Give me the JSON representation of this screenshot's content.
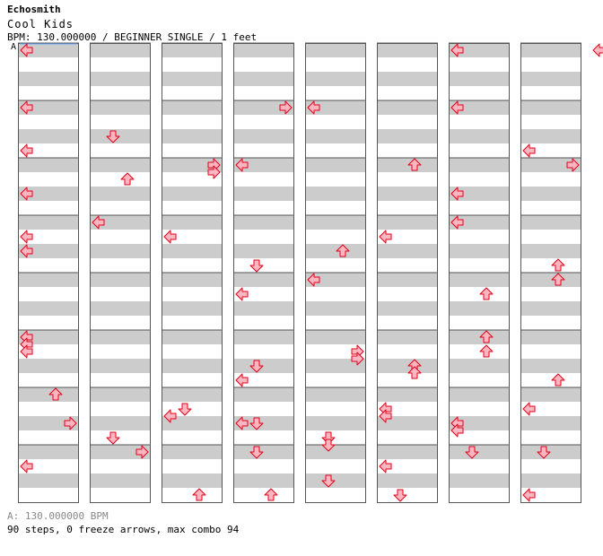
{
  "header": {
    "artist": "Echosmith",
    "title": "Cool Kids",
    "info": "BPM: 130.000000 / BEGINNER SINGLE / 1 feet"
  },
  "bpm_marker": "A",
  "footer": {
    "bpm_line": "A: 130.000000 BPM",
    "stats": "90 steps, 0 freeze arrows, max combo 94"
  },
  "colors": {
    "arrow_fill": "#ffb6c1",
    "arrow_stroke": "#e0001a",
    "stripe_gray": "#cccccc",
    "stripe_white": "#ffffff",
    "border": "#555555"
  },
  "legend": {
    "L": "left-arrow",
    "D": "down-arrow",
    "U": "up-arrow",
    "R": "right-arrow"
  },
  "chart_data": {
    "type": "step-chart",
    "columns_visible": 8,
    "measures_per_column": 8,
    "rows_per_measure": 4,
    "steps": [
      [
        [
          [
            0,
            0
          ]
        ],
        [],
        [],
        [],
        [],
        [],
        [
          [
            0,
            0
          ]
        ],
        []
      ],
      [
        [
          [
            0,
            0
          ],
          [
            0,
            3
          ]
        ],
        [
          [
            1,
            2
          ]
        ],
        [],
        [
          [
            3,
            0
          ]
        ],
        [
          [
            0,
            0
          ]
        ],
        [],
        [
          [
            0,
            0
          ]
        ],
        [
          [
            0,
            3
          ]
        ]
      ],
      [
        [
          [
            0,
            2
          ]
        ],
        [
          [
            2,
            1
          ]
        ],
        [
          [
            3,
            0
          ],
          [
            3,
            0.5
          ]
        ],
        [
          [
            0,
            0
          ]
        ],
        [],
        [
          [
            2,
            0
          ]
        ],
        [
          [
            0,
            2
          ]
        ],
        [
          [
            3,
            0
          ]
        ]
      ],
      [
        [
          [
            0,
            1
          ],
          [
            0,
            2
          ]
        ],
        [
          [
            0,
            0
          ]
        ],
        [
          [
            0,
            1
          ]
        ],
        [
          [
            1,
            3
          ]
        ],
        [
          [
            2,
            2
          ]
        ],
        [
          [
            0,
            1
          ]
        ],
        [
          [
            0,
            0
          ]
        ],
        [
          [
            2,
            3
          ]
        ]
      ],
      [
        [],
        [],
        [],
        [
          [
            0,
            1
          ]
        ],
        [
          [
            0,
            0
          ]
        ],
        [],
        [
          [
            2,
            1
          ]
        ],
        [
          [
            2,
            0
          ]
        ]
      ],
      [
        [
          [
            0,
            0
          ],
          [
            0,
            0.5
          ],
          [
            0,
            1
          ]
        ],
        [],
        [],
        [
          [
            0,
            3
          ],
          [
            1,
            2
          ]
        ],
        [
          [
            3,
            1
          ],
          [
            3,
            1.5
          ]
        ],
        [
          [
            2,
            2
          ],
          [
            2,
            2.5
          ]
        ],
        [
          [
            2,
            0
          ],
          [
            2,
            1
          ]
        ],
        [
          [
            2,
            3
          ]
        ]
      ],
      [
        [
          [
            2,
            0
          ],
          [
            3,
            2
          ]
        ],
        [
          [
            1,
            3
          ]
        ],
        [
          [
            1,
            1
          ],
          [
            0,
            1.5
          ]
        ],
        [
          [
            0,
            2
          ],
          [
            1,
            2
          ]
        ],
        [
          [
            1,
            3
          ],
          [
            1,
            3.5
          ]
        ],
        [
          [
            0,
            1
          ],
          [
            0,
            1.5
          ]
        ],
        [
          [
            0,
            2
          ],
          [
            0,
            2.5
          ]
        ],
        [
          [
            0,
            1
          ]
        ]
      ],
      [
        [
          [
            0,
            1
          ]
        ],
        [
          [
            3,
            0
          ]
        ],
        [
          [
            2,
            3
          ]
        ],
        [
          [
            1,
            0
          ],
          [
            2,
            3
          ]
        ],
        [
          [
            1,
            2
          ]
        ],
        [
          [
            0,
            1
          ],
          [
            1,
            3
          ]
        ],
        [
          [
            1,
            0
          ]
        ],
        [
          [
            1,
            0
          ],
          [
            0,
            3
          ]
        ]
      ]
    ],
    "offscreen_hint": "left-arrow at top right edge"
  }
}
